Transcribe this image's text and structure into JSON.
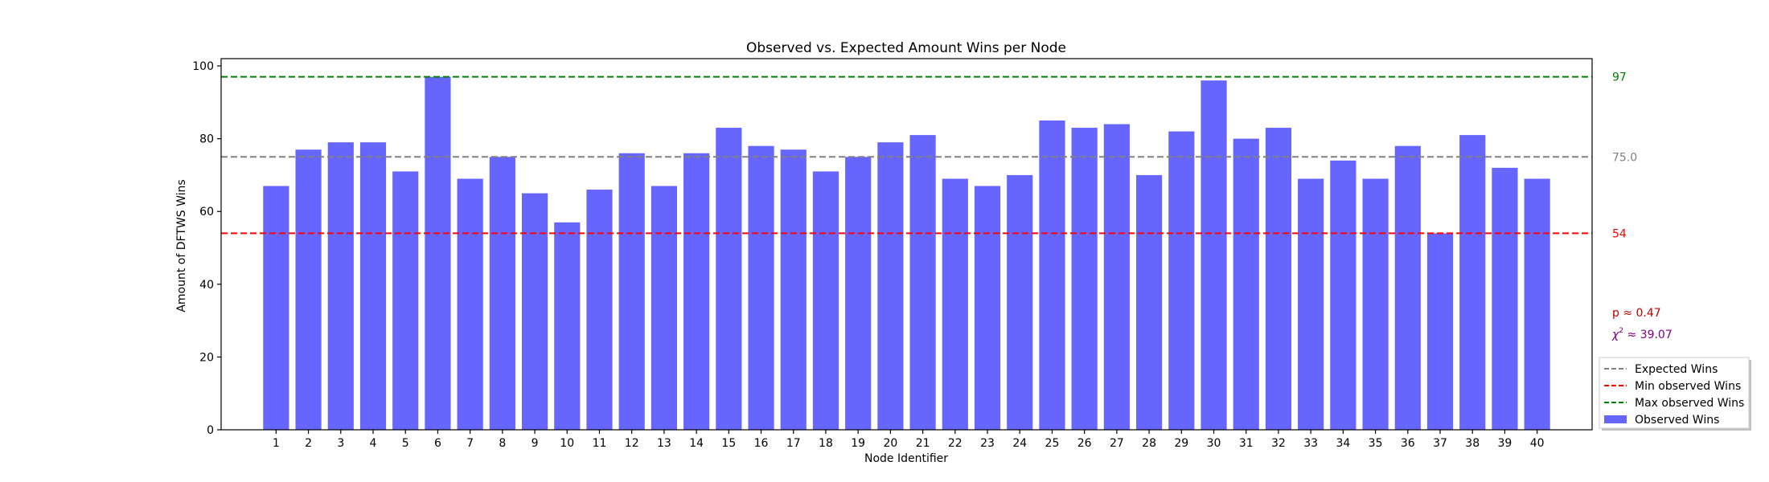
{
  "chart_data": {
    "type": "bar",
    "title": "Observed vs. Expected Amount Wins per Node",
    "xlabel": "Node Identifier",
    "ylabel": "Amount of DFTWS Wins",
    "ylim": [
      0,
      102
    ],
    "yticks": [
      0,
      20,
      40,
      60,
      80,
      100
    ],
    "grid": false,
    "legend_position": "lower-right",
    "categories": [
      "1",
      "2",
      "3",
      "4",
      "5",
      "6",
      "7",
      "8",
      "9",
      "10",
      "11",
      "12",
      "13",
      "14",
      "15",
      "16",
      "17",
      "18",
      "19",
      "20",
      "21",
      "22",
      "23",
      "24",
      "25",
      "26",
      "27",
      "28",
      "29",
      "30",
      "31",
      "32",
      "33",
      "34",
      "35",
      "36",
      "37",
      "38",
      "39",
      "40"
    ],
    "series": [
      {
        "name": "Observed Wins",
        "color": "#6666ff",
        "values": [
          67,
          77,
          79,
          79,
          71,
          97,
          69,
          75,
          65,
          57,
          66,
          76,
          67,
          76,
          83,
          78,
          77,
          71,
          75,
          79,
          81,
          69,
          67,
          70,
          85,
          83,
          84,
          70,
          82,
          96,
          80,
          83,
          69,
          74,
          69,
          78,
          54,
          81,
          72,
          69
        ]
      }
    ],
    "reference_lines": [
      {
        "name": "Expected Wins",
        "value": 75.0,
        "label": "75.0",
        "color": "#808080"
      },
      {
        "name": "Min observed Wins",
        "value": 54,
        "label": "54",
        "color": "#ff0000"
      },
      {
        "name": "Max observed Wins",
        "value": 97,
        "label": "97",
        "color": "#008000"
      }
    ],
    "annotations": {
      "p_value": "p ≈ 0.47",
      "chi_symbol": "χ",
      "chi_superscript": "2",
      "chi_value": " ≈ 39.07",
      "p_color": "#c00000",
      "chi_color": "#800080"
    },
    "legend": [
      {
        "label": "Expected Wins",
        "kind": "dashed",
        "color": "#808080"
      },
      {
        "label": "Min observed Wins",
        "kind": "dashed",
        "color": "#ff0000"
      },
      {
        "label": "Max observed Wins",
        "kind": "dashed",
        "color": "#008000"
      },
      {
        "label": "Observed Wins",
        "kind": "patch",
        "color": "#6666ff"
      }
    ]
  }
}
